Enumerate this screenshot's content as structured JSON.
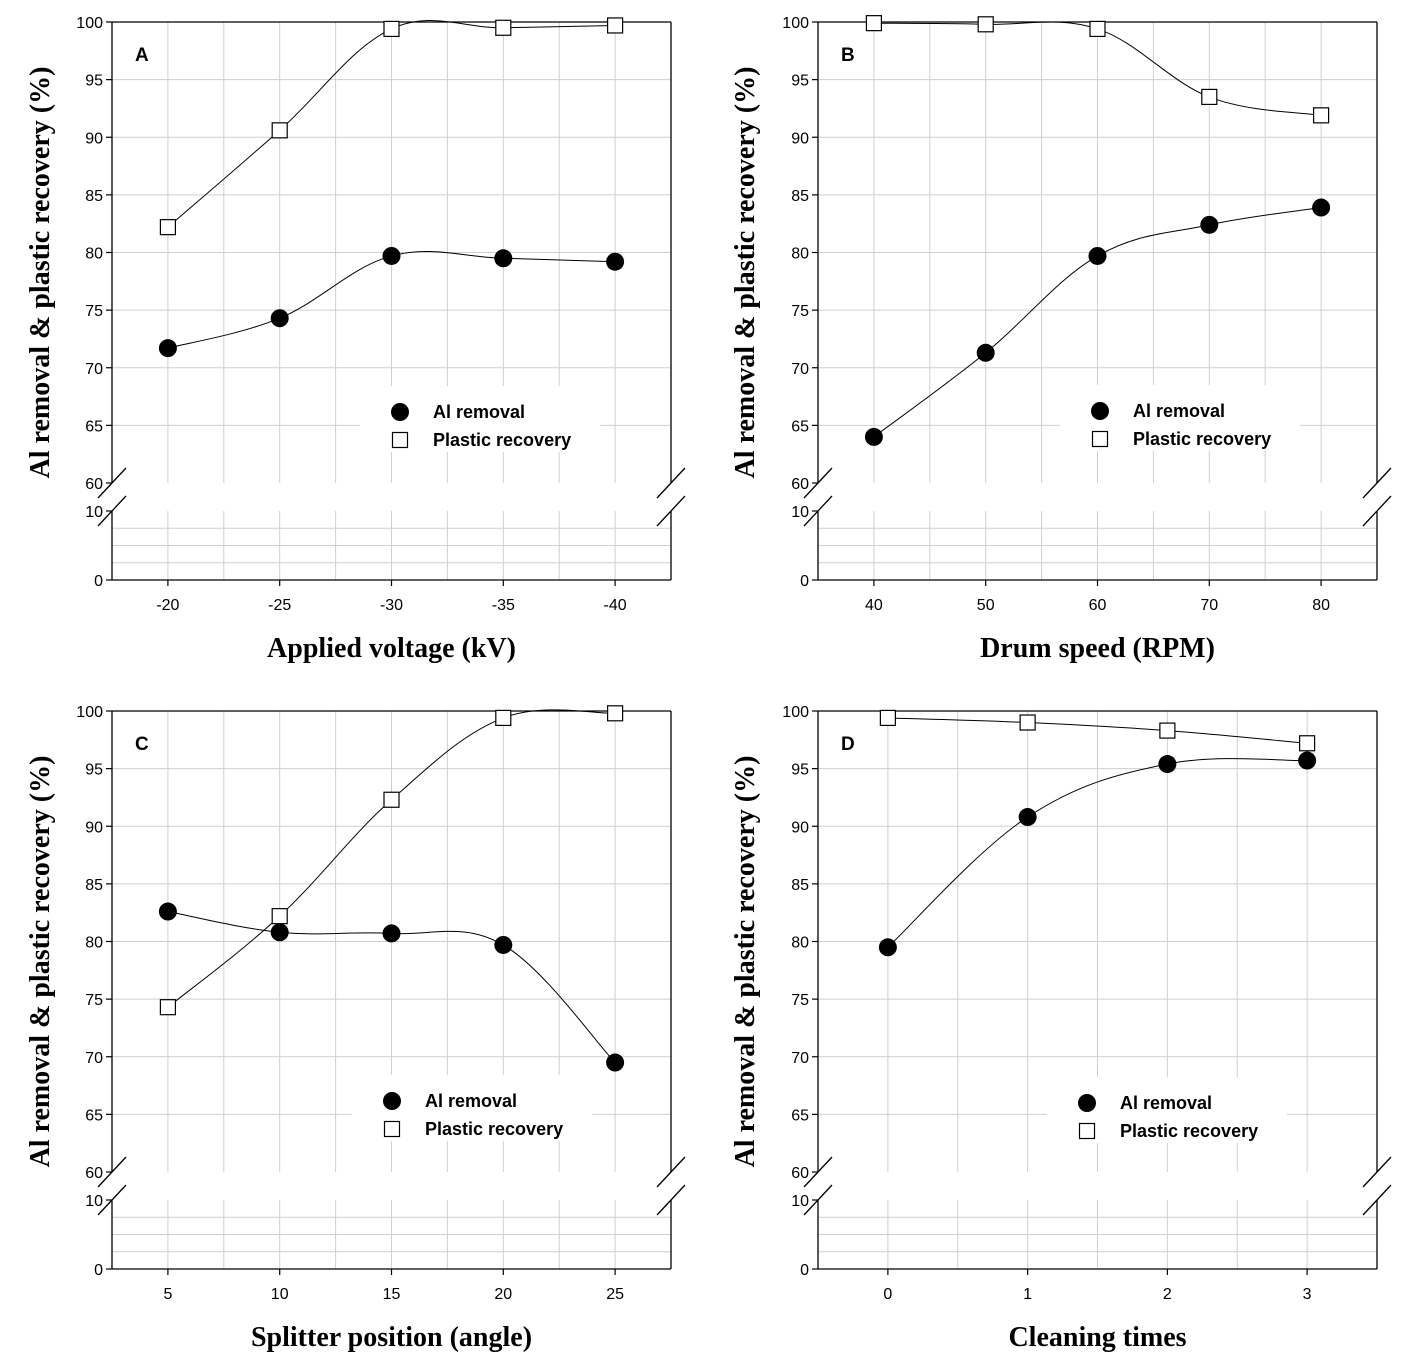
{
  "chart_data": [
    {
      "type": "scatter",
      "panel": "A",
      "xlabel": "Applied voltage (kV)",
      "ylabel": "Al removal & plastic recovery (%)",
      "categories": [
        "-20",
        "-25",
        "-30",
        "-35",
        "-40"
      ],
      "y_ticks_upper": [
        "60",
        "65",
        "70",
        "75",
        "80",
        "85",
        "90",
        "95",
        "100"
      ],
      "y_ticks_lower": [
        "0",
        "10"
      ],
      "ylim_upper": [
        60,
        100
      ],
      "ylim_lower": [
        0,
        10
      ],
      "axis_break": true,
      "grid": true,
      "legend_position": "lower-right",
      "series": [
        {
          "name": "Al removal",
          "marker": "filled-circle",
          "values": [
            71.7,
            74.3,
            79.7,
            79.5,
            79.2
          ]
        },
        {
          "name": "Plastic recovery",
          "marker": "open-square",
          "values": [
            82.2,
            90.6,
            99.4,
            99.5,
            99.7
          ]
        }
      ]
    },
    {
      "type": "scatter",
      "panel": "B",
      "xlabel": "Drum speed (RPM)",
      "ylabel": "Al removal & plastic recovery (%)",
      "categories": [
        "40",
        "50",
        "60",
        "70",
        "80"
      ],
      "y_ticks_upper": [
        "60",
        "65",
        "70",
        "75",
        "80",
        "85",
        "90",
        "95",
        "100"
      ],
      "y_ticks_lower": [
        "0",
        "10"
      ],
      "ylim_upper": [
        60,
        100
      ],
      "ylim_lower": [
        0,
        10
      ],
      "axis_break": true,
      "grid": true,
      "legend_position": "lower-right",
      "series": [
        {
          "name": "Al removal",
          "marker": "filled-circle",
          "values": [
            64.0,
            71.3,
            79.7,
            82.4,
            83.9
          ]
        },
        {
          "name": "Plastic recovery",
          "marker": "open-square",
          "values": [
            99.9,
            99.8,
            99.4,
            93.5,
            91.9
          ]
        }
      ]
    },
    {
      "type": "scatter",
      "panel": "C",
      "xlabel": "Splitter position (angle)",
      "ylabel": "Al removal & plastic recovery (%)",
      "categories": [
        "5",
        "10",
        "15",
        "20",
        "25"
      ],
      "y_ticks_upper": [
        "60",
        "65",
        "70",
        "75",
        "80",
        "85",
        "90",
        "95",
        "100"
      ],
      "y_ticks_lower": [
        "0",
        "10"
      ],
      "ylim_upper": [
        60,
        100
      ],
      "ylim_lower": [
        0,
        10
      ],
      "axis_break": true,
      "grid": true,
      "legend_position": "lower-right",
      "series": [
        {
          "name": "Al removal",
          "marker": "filled-circle",
          "values": [
            82.6,
            80.8,
            80.7,
            79.7,
            69.5
          ]
        },
        {
          "name": "Plastic recovery",
          "marker": "open-square",
          "values": [
            74.3,
            82.2,
            92.3,
            99.4,
            99.8
          ]
        }
      ]
    },
    {
      "type": "scatter",
      "panel": "D",
      "xlabel": "Cleaning times",
      "ylabel": "Al removal & plastic recovery (%)",
      "categories": [
        "0",
        "1",
        "2",
        "3"
      ],
      "y_ticks_upper": [
        "60",
        "65",
        "70",
        "75",
        "80",
        "85",
        "90",
        "95",
        "100"
      ],
      "y_ticks_lower": [
        "0",
        "10"
      ],
      "ylim_upper": [
        60,
        100
      ],
      "ylim_lower": [
        0,
        10
      ],
      "axis_break": true,
      "grid": true,
      "legend_position": "lower-right",
      "series": [
        {
          "name": "Al removal",
          "marker": "filled-circle",
          "values": [
            79.5,
            90.8,
            95.4,
            95.7
          ]
        },
        {
          "name": "Plastic recovery",
          "marker": "open-square",
          "values": [
            99.4,
            99.0,
            98.3,
            97.2
          ]
        }
      ]
    }
  ]
}
